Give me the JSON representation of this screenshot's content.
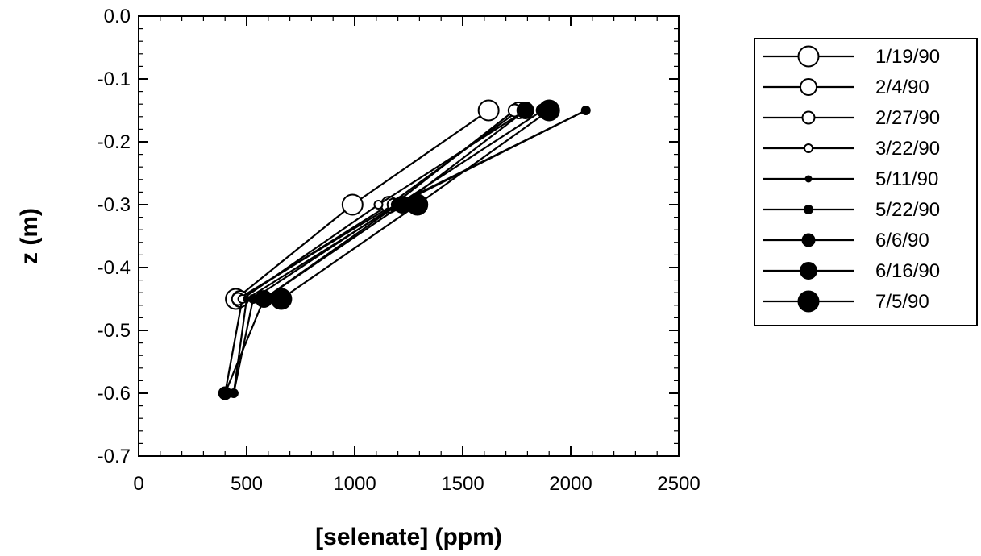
{
  "chart_data": {
    "type": "line",
    "title": "",
    "xlabel": "[selenate]  (ppm)",
    "ylabel": "z (m)",
    "xlim": [
      0,
      2500
    ],
    "ylim": [
      -0.7,
      0.0
    ],
    "xticks": [
      "0",
      "500",
      "1000",
      "1500",
      "2000",
      "2500"
    ],
    "yticks": [
      "0.0",
      "-0.1",
      "-0.2",
      "-0.3",
      "-0.4",
      "-0.5",
      "-0.6",
      "-0.7"
    ],
    "grid": false,
    "legend_position": "right",
    "marker_style": "circle markers, hollow for earlier dates and filled for later dates, varying in size",
    "series": [
      {
        "name": "1/19/90",
        "filled": false,
        "size": "large",
        "points": [
          {
            "x": 1620,
            "y": -0.15
          },
          {
            "x": 990,
            "y": -0.3
          },
          {
            "x": 450,
            "y": -0.45
          }
        ]
      },
      {
        "name": "2/4/90",
        "filled": false,
        "size": "medium",
        "points": [
          {
            "x": 1760,
            "y": -0.15
          },
          {
            "x": 1160,
            "y": -0.3
          },
          {
            "x": 470,
            "y": -0.45
          }
        ]
      },
      {
        "name": "2/27/90",
        "filled": false,
        "size": "small",
        "points": [
          {
            "x": 1740,
            "y": -0.15
          },
          {
            "x": 1180,
            "y": -0.3
          },
          {
            "x": 460,
            "y": -0.45
          }
        ]
      },
      {
        "name": "3/22/90",
        "filled": false,
        "size": "very small",
        "points": [
          {
            "x": 1790,
            "y": -0.15
          },
          {
            "x": 1110,
            "y": -0.3
          },
          {
            "x": 480,
            "y": -0.45
          },
          {
            "x": 400,
            "y": -0.6
          }
        ]
      },
      {
        "name": "5/11/90",
        "filled": true,
        "size": "tiny",
        "points": [
          {
            "x": 2070,
            "y": -0.15
          },
          {
            "x": 1200,
            "y": -0.3
          },
          {
            "x": 500,
            "y": -0.45
          },
          {
            "x": 440,
            "y": -0.6
          }
        ]
      },
      {
        "name": "5/22/90",
        "filled": true,
        "size": "very small",
        "points": [
          {
            "x": 2070,
            "y": -0.15
          },
          {
            "x": 1190,
            "y": -0.3
          },
          {
            "x": 530,
            "y": -0.45
          },
          {
            "x": 440,
            "y": -0.6
          }
        ]
      },
      {
        "name": "6/6/90",
        "filled": true,
        "size": "small",
        "points": [
          {
            "x": 1870,
            "y": -0.15
          },
          {
            "x": 1200,
            "y": -0.3
          },
          {
            "x": 580,
            "y": -0.45
          },
          {
            "x": 400,
            "y": -0.6
          }
        ]
      },
      {
        "name": "6/16/90",
        "filled": true,
        "size": "medium",
        "points": [
          {
            "x": 1790,
            "y": -0.15
          },
          {
            "x": 1220,
            "y": -0.3
          },
          {
            "x": 580,
            "y": -0.45
          }
        ]
      },
      {
        "name": "7/5/90",
        "filled": true,
        "size": "large",
        "points": [
          {
            "x": 1900,
            "y": -0.15
          },
          {
            "x": 1290,
            "y": -0.3
          },
          {
            "x": 660,
            "y": -0.45
          }
        ]
      }
    ]
  }
}
